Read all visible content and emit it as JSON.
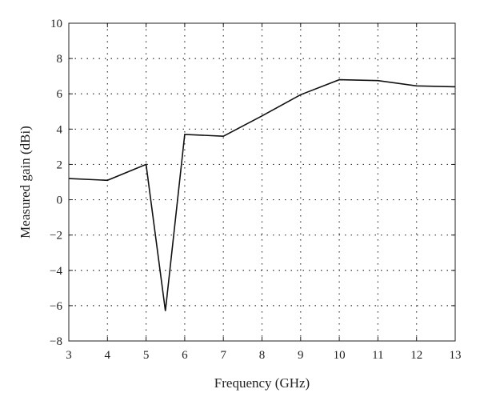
{
  "chart_data": {
    "type": "line",
    "title": "",
    "xlabel": "Frequency (GHz)",
    "ylabel": "Measured gain (dBi)",
    "xlim": [
      3,
      13
    ],
    "ylim": [
      -8,
      10
    ],
    "xticks": [
      3,
      4,
      5,
      6,
      7,
      8,
      9,
      10,
      11,
      12,
      13
    ],
    "yticks": [
      -8,
      -6,
      -4,
      -2,
      0,
      2,
      4,
      6,
      8,
      10
    ],
    "grid": true,
    "series": [
      {
        "x": [
          3,
          4,
          5,
          5.5,
          6,
          7,
          8,
          9,
          10,
          11,
          12,
          13
        ],
        "y": [
          1.2,
          1.1,
          2.0,
          -6.3,
          3.7,
          3.6,
          4.75,
          5.95,
          6.8,
          6.75,
          6.45,
          6.4
        ]
      }
    ]
  }
}
